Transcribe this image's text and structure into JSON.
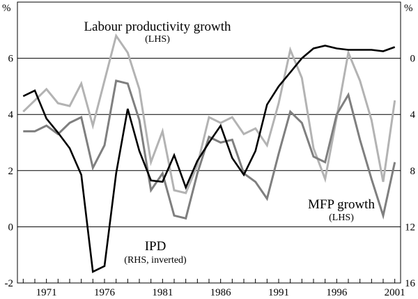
{
  "chart_data": {
    "type": "line",
    "title": "",
    "xlabel": "",
    "left_axis": {
      "unit": "%",
      "range": [
        -2,
        8
      ],
      "ticks": [
        "-2",
        "0",
        "2",
        "4",
        "6"
      ]
    },
    "right_axis": {
      "unit": "%",
      "range": [
        16,
        -4
      ],
      "inverted": true,
      "ticks": [
        "16",
        "12",
        "8",
        "4",
        "0"
      ]
    },
    "x_range": [
      1968.5,
      2001.5
    ],
    "x_ticks": [
      "1971",
      "1976",
      "1981",
      "1986",
      "1991",
      "1996",
      "2001"
    ],
    "grid": "horizontal",
    "x": [
      1969,
      1970,
      1971,
      1972,
      1973,
      1974,
      1975,
      1976,
      1977,
      1978,
      1979,
      1980,
      1981,
      1982,
      1983,
      1984,
      1985,
      1986,
      1987,
      1988,
      1989,
      1990,
      1991,
      1992,
      1993,
      1994,
      1995,
      1996,
      1997,
      1998,
      1999,
      2000,
      2001
    ],
    "series": [
      {
        "name": "Labour productivity growth",
        "axis": "left",
        "color": "#b3b3b3",
        "values": [
          4.1,
          4.5,
          4.9,
          4.4,
          4.3,
          5.1,
          3.6,
          5.2,
          6.8,
          6.2,
          4.9,
          2.3,
          3.4,
          1.3,
          1.2,
          2.2,
          3.9,
          3.7,
          3.9,
          3.3,
          3.5,
          2.9,
          4.4,
          6.3,
          5.3,
          2.8,
          1.7,
          3.9,
          6.2,
          5.2,
          3.8,
          1.6,
          4.5
        ]
      },
      {
        "name": "MFP growth",
        "axis": "left",
        "color": "#7f7f7f",
        "values": [
          3.4,
          3.4,
          3.6,
          3.3,
          3.7,
          3.9,
          2.1,
          2.9,
          5.2,
          5.1,
          3.8,
          1.3,
          1.9,
          0.4,
          0.3,
          1.9,
          3.2,
          3.0,
          3.1,
          1.9,
          1.6,
          1.0,
          2.6,
          4.1,
          3.7,
          2.5,
          2.3,
          4.0,
          4.7,
          3.1,
          1.7,
          0.4,
          2.3
        ]
      },
      {
        "name": "IPD",
        "axis": "right",
        "color": "#000000",
        "values": [
          2.7,
          2.3,
          4.3,
          5.3,
          6.4,
          8.3,
          15.2,
          14.8,
          8.2,
          3.6,
          6.6,
          8.7,
          8.8,
          6.9,
          9.2,
          7.3,
          6.0,
          4.8,
          7.1,
          8.3,
          6.6,
          3.3,
          2.0,
          1.0,
          0.0,
          -0.7,
          -0.9,
          -0.7,
          -0.6,
          -0.6,
          -0.6,
          -0.5,
          -0.8
        ]
      }
    ],
    "annotations": {
      "labour": [
        "Labour productivity growth",
        "(LHS)"
      ],
      "mfp": [
        "MFP growth",
        "(LHS)"
      ],
      "ipd": [
        "IPD",
        "(RHS, inverted)"
      ]
    }
  }
}
